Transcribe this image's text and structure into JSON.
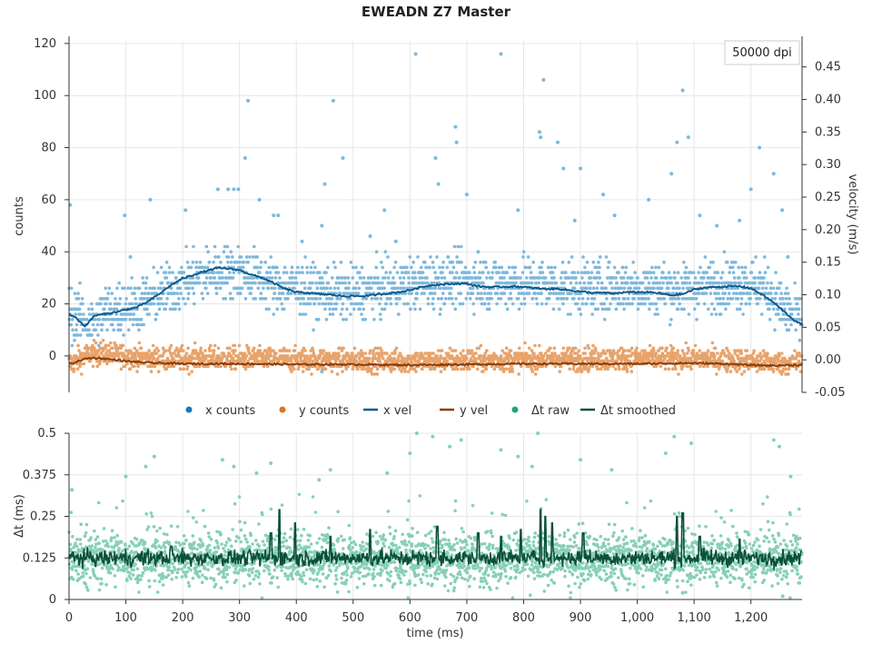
{
  "chart_data": [
    {
      "type": "scatter",
      "panel": "top",
      "title": "EWEADN Z7 Master",
      "annotation": "50000 dpi",
      "ylabel": "counts",
      "y2label": "velocity (m/s)",
      "xlim": [
        0,
        1290
      ],
      "ylim": [
        -14,
        121
      ],
      "y2lim": [
        -0.05,
        0.49
      ],
      "yticks": [
        0,
        20,
        40,
        60,
        80,
        100,
        120
      ],
      "y2ticks": [
        -0.05,
        0.0,
        0.05,
        0.1,
        0.15,
        0.2,
        0.25,
        0.3,
        0.35,
        0.4,
        0.45
      ],
      "y2tick_labels": [
        "-0.05",
        "0.00",
        "0.05",
        "0.10",
        "0.15",
        "0.20",
        "0.25",
        "0.30",
        "0.35",
        "0.40",
        "0.45"
      ],
      "grid": true,
      "series": [
        {
          "name": "x counts",
          "kind": "points",
          "color": "#7fb8db",
          "baseline_profile": {
            "x": [
              0,
              20,
              40,
              60,
              100,
              140,
              180,
              220,
              260,
              300,
              330,
              360,
              400,
              440,
              460,
              500,
              560,
              620,
              680,
              740,
              800,
              860,
              920,
              980,
              1040,
              1080,
              1120,
              1160,
              1200,
              1230,
              1260,
              1290
            ],
            "y": [
              17,
              15,
              12,
              17,
              19,
              21,
              26,
              30,
              32,
              32,
              30,
              27,
              26,
              25,
              24,
              24,
              26,
              28,
              29,
              28,
              28,
              27,
              26,
              27,
              26,
              25,
              27,
              28,
              28,
              25,
              18,
              13
            ]
          },
          "spread": 5,
          "outliers": [
            {
              "x": 2,
              "y": 58
            },
            {
              "x": 98,
              "y": 54
            },
            {
              "x": 108,
              "y": 38
            },
            {
              "x": 143,
              "y": 60
            },
            {
              "x": 205,
              "y": 56
            },
            {
              "x": 262,
              "y": 64
            },
            {
              "x": 280,
              "y": 64
            },
            {
              "x": 290,
              "y": 64
            },
            {
              "x": 298,
              "y": 64
            },
            {
              "x": 310,
              "y": 76
            },
            {
              "x": 315,
              "y": 98
            },
            {
              "x": 335,
              "y": 60
            },
            {
              "x": 360,
              "y": 54
            },
            {
              "x": 368,
              "y": 54
            },
            {
              "x": 445,
              "y": 50
            },
            {
              "x": 450,
              "y": 66
            },
            {
              "x": 465,
              "y": 98
            },
            {
              "x": 482,
              "y": 76
            },
            {
              "x": 410,
              "y": 44
            },
            {
              "x": 530,
              "y": 46
            },
            {
              "x": 555,
              "y": 56
            },
            {
              "x": 575,
              "y": 44
            },
            {
              "x": 610,
              "y": 116
            },
            {
              "x": 645,
              "y": 76
            },
            {
              "x": 680,
              "y": 88
            },
            {
              "x": 682,
              "y": 82
            },
            {
              "x": 650,
              "y": 66
            },
            {
              "x": 700,
              "y": 62
            },
            {
              "x": 720,
              "y": 40
            },
            {
              "x": 760,
              "y": 116
            },
            {
              "x": 790,
              "y": 56
            },
            {
              "x": 828,
              "y": 86
            },
            {
              "x": 830,
              "y": 84
            },
            {
              "x": 835,
              "y": 106
            },
            {
              "x": 860,
              "y": 82
            },
            {
              "x": 870,
              "y": 72
            },
            {
              "x": 890,
              "y": 52
            },
            {
              "x": 900,
              "y": 72
            },
            {
              "x": 940,
              "y": 62
            },
            {
              "x": 960,
              "y": 54
            },
            {
              "x": 1020,
              "y": 60
            },
            {
              "x": 1070,
              "y": 82
            },
            {
              "x": 1080,
              "y": 102
            },
            {
              "x": 1090,
              "y": 84
            },
            {
              "x": 1060,
              "y": 70
            },
            {
              "x": 1110,
              "y": 54
            },
            {
              "x": 1140,
              "y": 50
            },
            {
              "x": 1180,
              "y": 52
            },
            {
              "x": 1200,
              "y": 64
            },
            {
              "x": 1215,
              "y": 80
            },
            {
              "x": 1240,
              "y": 70
            },
            {
              "x": 1255,
              "y": 56
            },
            {
              "x": 1265,
              "y": 38
            },
            {
              "x": 445,
              "y": -6
            }
          ]
        },
        {
          "name": "y counts",
          "kind": "points",
          "color": "#e8a36a",
          "baseline_profile": {
            "x": [
              0,
              20,
              40,
              70,
              100,
              150,
              300,
              600,
              900,
              1100,
              1200,
              1260,
              1290
            ],
            "y": [
              -3,
              -1,
              1,
              1,
              0,
              -1,
              -1,
              -2,
              -1,
              -1,
              -2,
              -3,
              -2
            ]
          },
          "spread": 2.2
        },
        {
          "name": "x vel",
          "kind": "line",
          "axis": "y2",
          "color": "#0e5a8a",
          "x": [
            0,
            10,
            20,
            28,
            35,
            45,
            60,
            80,
            100,
            120,
            140,
            160,
            180,
            200,
            220,
            240,
            260,
            280,
            300,
            320,
            340,
            360,
            380,
            400,
            420,
            440,
            460,
            480,
            500,
            520,
            540,
            560,
            580,
            600,
            620,
            640,
            660,
            680,
            700,
            720,
            740,
            760,
            780,
            800,
            820,
            840,
            860,
            880,
            900,
            920,
            940,
            960,
            980,
            1000,
            1020,
            1040,
            1060,
            1080,
            1100,
            1120,
            1140,
            1160,
            1180,
            1200,
            1220,
            1240,
            1260,
            1280,
            1290
          ],
          "y": [
            0.07,
            0.066,
            0.058,
            0.052,
            0.058,
            0.068,
            0.07,
            0.073,
            0.077,
            0.081,
            0.09,
            0.102,
            0.115,
            0.125,
            0.131,
            0.136,
            0.141,
            0.14,
            0.138,
            0.131,
            0.126,
            0.118,
            0.109,
            0.104,
            0.103,
            0.101,
            0.1,
            0.098,
            0.098,
            0.098,
            0.1,
            0.102,
            0.104,
            0.107,
            0.112,
            0.115,
            0.116,
            0.117,
            0.117,
            0.113,
            0.112,
            0.112,
            0.113,
            0.112,
            0.11,
            0.109,
            0.109,
            0.107,
            0.105,
            0.103,
            0.103,
            0.102,
            0.104,
            0.104,
            0.104,
            0.102,
            0.099,
            0.101,
            0.108,
            0.111,
            0.112,
            0.113,
            0.113,
            0.11,
            0.1,
            0.088,
            0.073,
            0.058,
            0.055
          ]
        },
        {
          "name": "y vel",
          "kind": "line",
          "axis": "y2",
          "color": "#8b3d0b",
          "x": [
            0,
            10,
            20,
            30,
            45,
            60,
            80,
            100,
            130,
            160,
            200,
            300,
            400,
            500,
            600,
            700,
            800,
            900,
            1000,
            1100,
            1150,
            1200,
            1240,
            1270,
            1290
          ],
          "y": [
            -0.006,
            -0.004,
            -0.001,
            0.002,
            0.003,
            0.002,
            0.0,
            -0.002,
            -0.004,
            -0.005,
            -0.006,
            -0.006,
            -0.007,
            -0.007,
            -0.008,
            -0.007,
            -0.006,
            -0.006,
            -0.006,
            -0.005,
            -0.006,
            -0.008,
            -0.009,
            -0.008,
            -0.008
          ]
        }
      ]
    },
    {
      "type": "scatter",
      "panel": "bottom",
      "xlabel": "time (ms)",
      "ylabel": "Δt (ms)",
      "xlim": [
        0,
        1290
      ],
      "ylim": [
        0,
        0.5
      ],
      "xticks": [
        0,
        100,
        200,
        300,
        400,
        500,
        600,
        700,
        800,
        900,
        1000,
        1100,
        1200
      ],
      "xtick_labels": [
        "0",
        "100",
        "200",
        "300",
        "400",
        "500",
        "600",
        "700",
        "800",
        "900",
        "1,000",
        "1,100",
        "1,200"
      ],
      "yticks": [
        0,
        0.125,
        0.25,
        0.375,
        0.5
      ],
      "ytick_labels": [
        "0",
        "0.125",
        "0.25",
        "0.375",
        "0.5"
      ],
      "grid": true,
      "series": [
        {
          "name": "Δt raw",
          "kind": "points",
          "color": "#86d0b6",
          "center": 0.125,
          "spread": 0.07,
          "outliers": [
            {
              "x": 5,
              "y": 0.33
            },
            {
              "x": 100,
              "y": 0.37
            },
            {
              "x": 135,
              "y": 0.4
            },
            {
              "x": 150,
              "y": 0.43
            },
            {
              "x": 270,
              "y": 0.42
            },
            {
              "x": 290,
              "y": 0.4
            },
            {
              "x": 330,
              "y": 0.38
            },
            {
              "x": 355,
              "y": 0.41
            },
            {
              "x": 440,
              "y": 0.36
            },
            {
              "x": 460,
              "y": 0.39
            },
            {
              "x": 560,
              "y": 0.38
            },
            {
              "x": 600,
              "y": 0.44
            },
            {
              "x": 612,
              "y": 0.5
            },
            {
              "x": 640,
              "y": 0.49
            },
            {
              "x": 670,
              "y": 0.46
            },
            {
              "x": 690,
              "y": 0.48
            },
            {
              "x": 760,
              "y": 0.45
            },
            {
              "x": 790,
              "y": 0.43
            },
            {
              "x": 815,
              "y": 0.4
            },
            {
              "x": 825,
              "y": 0.5
            },
            {
              "x": 900,
              "y": 0.42
            },
            {
              "x": 955,
              "y": 0.39
            },
            {
              "x": 1050,
              "y": 0.44
            },
            {
              "x": 1065,
              "y": 0.49
            },
            {
              "x": 1095,
              "y": 0.47
            },
            {
              "x": 1240,
              "y": 0.48
            },
            {
              "x": 1250,
              "y": 0.46
            },
            {
              "x": 1270,
              "y": 0.37
            },
            {
              "x": 1256,
              "y": 0.01
            },
            {
              "x": 1080,
              "y": 0.02
            }
          ]
        },
        {
          "name": "Δt smoothed",
          "kind": "line",
          "color": "#0b4f3c",
          "center": 0.125,
          "jitter": 0.02,
          "spikes": [
            {
              "x": 180,
              "y": 0.16
            },
            {
              "x": 355,
              "y": 0.2
            },
            {
              "x": 370,
              "y": 0.27
            },
            {
              "x": 398,
              "y": 0.23
            },
            {
              "x": 460,
              "y": 0.19
            },
            {
              "x": 530,
              "y": 0.21
            },
            {
              "x": 648,
              "y": 0.22
            },
            {
              "x": 720,
              "y": 0.2
            },
            {
              "x": 760,
              "y": 0.19
            },
            {
              "x": 795,
              "y": 0.21
            },
            {
              "x": 830,
              "y": 0.27
            },
            {
              "x": 838,
              "y": 0.25
            },
            {
              "x": 850,
              "y": 0.23
            },
            {
              "x": 905,
              "y": 0.2
            },
            {
              "x": 1070,
              "y": 0.25
            },
            {
              "x": 1080,
              "y": 0.26
            },
            {
              "x": 1110,
              "y": 0.19
            },
            {
              "x": 1180,
              "y": 0.18
            }
          ]
        }
      ]
    }
  ],
  "legend": {
    "placement": "between-panels",
    "items": [
      {
        "label": "x counts",
        "kind": "dot",
        "color": "#1f77b4"
      },
      {
        "label": "y counts",
        "kind": "dot",
        "color": "#e0731b"
      },
      {
        "label": "x vel",
        "kind": "line",
        "color": "#0e5a8a"
      },
      {
        "label": "y vel",
        "kind": "line",
        "color": "#8b3d0b"
      },
      {
        "label": "Δt raw",
        "kind": "dot",
        "color": "#17a77a"
      },
      {
        "label": "Δt smoothed",
        "kind": "line",
        "color": "#0b4f3c"
      }
    ]
  }
}
